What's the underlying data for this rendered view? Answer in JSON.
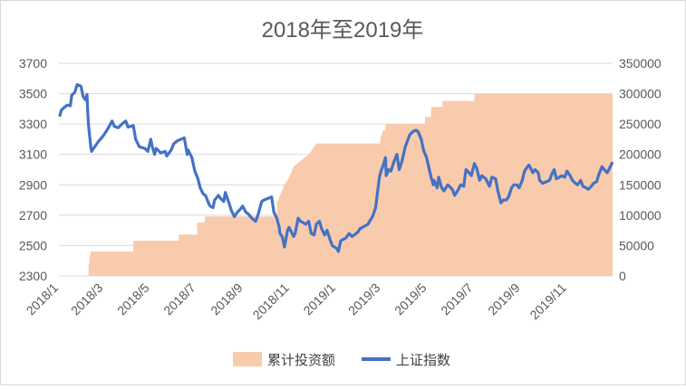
{
  "chart_data": {
    "type": "combo",
    "title": "2018年至2019年",
    "x_tick_labels": [
      "2018/1",
      "2018/3",
      "2018/5",
      "2018/7",
      "2018/9",
      "2018/11",
      "2019/1",
      "2019/3",
      "2019/5",
      "2019/7",
      "2019/9",
      "2019/11"
    ],
    "x_tick_dates": [
      "2018-01-01",
      "2018-03-01",
      "2018-05-01",
      "2018-07-01",
      "2018-09-01",
      "2018-11-01",
      "2019-01-01",
      "2019-03-01",
      "2019-05-01",
      "2019-07-01",
      "2019-09-01",
      "2019-11-01"
    ],
    "xlim": [
      "2018-01-01",
      "2019-12-31"
    ],
    "y_left": {
      "ylim": [
        2300,
        3700
      ],
      "ticks": [
        "2300",
        "2500",
        "2700",
        "2900",
        "3100",
        "3300",
        "3500",
        "3700"
      ]
    },
    "y_right": {
      "ylim": [
        0,
        350000
      ],
      "ticks": [
        "0",
        "50000",
        "100000",
        "150000",
        "200000",
        "250000",
        "300000",
        "350000"
      ]
    },
    "grid": true,
    "legend_position": "bottom",
    "series": [
      {
        "name": "累计投资额",
        "kind": "area",
        "axis": "right",
        "color": "#f8cbad",
        "points": [
          [
            "2018-02-09",
            0
          ],
          [
            "2018-02-09",
            15000
          ],
          [
            "2018-02-12",
            40000
          ],
          [
            "2018-04-09",
            40000
          ],
          [
            "2018-04-09",
            58000
          ],
          [
            "2018-06-08",
            58000
          ],
          [
            "2018-06-08",
            68000
          ],
          [
            "2018-07-02",
            68000
          ],
          [
            "2018-07-02",
            88000
          ],
          [
            "2018-07-12",
            88000
          ],
          [
            "2018-07-12",
            98000
          ],
          [
            "2018-10-15",
            98000
          ],
          [
            "2018-10-15",
            120000
          ],
          [
            "2018-10-25",
            150000
          ],
          [
            "2018-10-31",
            162000
          ],
          [
            "2018-11-06",
            180000
          ],
          [
            "2018-11-26",
            200000
          ],
          [
            "2018-12-06",
            218000
          ],
          [
            "2019-02-28",
            218000
          ],
          [
            "2019-02-28",
            226000
          ],
          [
            "2019-03-04",
            240000
          ],
          [
            "2019-03-07",
            240000
          ],
          [
            "2019-03-07",
            250000
          ],
          [
            "2019-04-28",
            250000
          ],
          [
            "2019-04-28",
            262000
          ],
          [
            "2019-05-06",
            262000
          ],
          [
            "2019-05-06",
            278000
          ],
          [
            "2019-05-21",
            278000
          ],
          [
            "2019-05-21",
            288000
          ],
          [
            "2019-07-02",
            288000
          ],
          [
            "2019-07-02",
            300000
          ],
          [
            "2019-12-31",
            300000
          ]
        ]
      },
      {
        "name": "上证指数",
        "kind": "line",
        "axis": "left",
        "color": "#4472c4",
        "points": [
          [
            "2018-01-02",
            3350
          ],
          [
            "2018-01-04",
            3390
          ],
          [
            "2018-01-08",
            3410
          ],
          [
            "2018-01-12",
            3425
          ],
          [
            "2018-01-16",
            3420
          ],
          [
            "2018-01-18",
            3490
          ],
          [
            "2018-01-22",
            3510
          ],
          [
            "2018-01-25",
            3560
          ],
          [
            "2018-01-30",
            3550
          ],
          [
            "2018-02-02",
            3480
          ],
          [
            "2018-02-05",
            3460
          ],
          [
            "2018-02-07",
            3495
          ],
          [
            "2018-02-08",
            3380
          ],
          [
            "2018-02-09",
            3290
          ],
          [
            "2018-02-12",
            3150
          ],
          [
            "2018-02-13",
            3120
          ],
          [
            "2018-02-22",
            3185
          ],
          [
            "2018-02-28",
            3220
          ],
          [
            "2018-03-06",
            3265
          ],
          [
            "2018-03-12",
            3320
          ],
          [
            "2018-03-15",
            3285
          ],
          [
            "2018-03-20",
            3275
          ],
          [
            "2018-03-26",
            3305
          ],
          [
            "2018-03-30",
            3320
          ],
          [
            "2018-04-02",
            3280
          ],
          [
            "2018-04-09",
            3290
          ],
          [
            "2018-04-12",
            3200
          ],
          [
            "2018-04-17",
            3150
          ],
          [
            "2018-04-24",
            3140
          ],
          [
            "2018-04-28",
            3120
          ],
          [
            "2018-05-02",
            3200
          ],
          [
            "2018-05-04",
            3150
          ],
          [
            "2018-05-07",
            3100
          ],
          [
            "2018-05-09",
            3140
          ],
          [
            "2018-05-15",
            3110
          ],
          [
            "2018-05-21",
            3120
          ],
          [
            "2018-05-23",
            3090
          ],
          [
            "2018-05-29",
            3130
          ],
          [
            "2018-06-01",
            3170
          ],
          [
            "2018-06-06",
            3190
          ],
          [
            "2018-06-11",
            3200
          ],
          [
            "2018-06-15",
            3210
          ],
          [
            "2018-06-19",
            3100
          ],
          [
            "2018-06-20",
            3130
          ],
          [
            "2018-06-25",
            3080
          ],
          [
            "2018-06-29",
            2990
          ],
          [
            "2018-07-03",
            2940
          ],
          [
            "2018-07-06",
            2880
          ],
          [
            "2018-07-10",
            2840
          ],
          [
            "2018-07-13",
            2830
          ],
          [
            "2018-07-17",
            2780
          ],
          [
            "2018-07-19",
            2760
          ],
          [
            "2018-07-23",
            2750
          ],
          [
            "2018-07-25",
            2800
          ],
          [
            "2018-07-30",
            2830
          ],
          [
            "2018-08-02",
            2810
          ],
          [
            "2018-08-06",
            2790
          ],
          [
            "2018-08-08",
            2850
          ],
          [
            "2018-08-13",
            2780
          ],
          [
            "2018-08-16",
            2730
          ],
          [
            "2018-08-20",
            2690
          ],
          [
            "2018-08-24",
            2720
          ],
          [
            "2018-08-28",
            2740
          ],
          [
            "2018-08-31",
            2760
          ],
          [
            "2018-09-04",
            2720
          ],
          [
            "2018-09-07",
            2710
          ],
          [
            "2018-09-12",
            2680
          ],
          [
            "2018-09-17",
            2660
          ],
          [
            "2018-09-20",
            2700
          ],
          [
            "2018-09-25",
            2790
          ],
          [
            "2018-09-28",
            2800
          ],
          [
            "2018-10-08",
            2820
          ],
          [
            "2018-10-11",
            2720
          ],
          [
            "2018-10-15",
            2680
          ],
          [
            "2018-10-18",
            2620
          ],
          [
            "2018-10-19",
            2580
          ],
          [
            "2018-10-22",
            2560
          ],
          [
            "2018-10-25",
            2490
          ],
          [
            "2018-10-29",
            2600
          ],
          [
            "2018-10-31",
            2620
          ],
          [
            "2018-11-02",
            2600
          ],
          [
            "2018-11-06",
            2560
          ],
          [
            "2018-11-08",
            2580
          ],
          [
            "2018-11-12",
            2680
          ],
          [
            "2018-11-15",
            2660
          ],
          [
            "2018-11-19",
            2650
          ],
          [
            "2018-11-22",
            2640
          ],
          [
            "2018-11-26",
            2660
          ],
          [
            "2018-11-29",
            2580
          ],
          [
            "2018-12-03",
            2570
          ],
          [
            "2018-12-06",
            2640
          ],
          [
            "2018-12-10",
            2660
          ],
          [
            "2018-12-13",
            2610
          ],
          [
            "2018-12-17",
            2570
          ],
          [
            "2018-12-20",
            2600
          ],
          [
            "2018-12-24",
            2540
          ],
          [
            "2018-12-27",
            2500
          ],
          [
            "2019-01-02",
            2480
          ],
          [
            "2019-01-04",
            2460
          ],
          [
            "2019-01-07",
            2530
          ],
          [
            "2019-01-10",
            2540
          ],
          [
            "2019-01-14",
            2550
          ],
          [
            "2019-01-18",
            2580
          ],
          [
            "2019-01-22",
            2560
          ],
          [
            "2019-01-25",
            2570
          ],
          [
            "2019-01-30",
            2590
          ],
          [
            "2019-02-01",
            2610
          ],
          [
            "2019-02-12",
            2640
          ],
          [
            "2019-02-14",
            2660
          ],
          [
            "2019-02-18",
            2690
          ],
          [
            "2019-02-22",
            2750
          ],
          [
            "2019-02-25",
            2870
          ],
          [
            "2019-02-27",
            2950
          ],
          [
            "2019-03-01",
            2990
          ],
          [
            "2019-03-04",
            3030
          ],
          [
            "2019-03-07",
            3080
          ],
          [
            "2019-03-08",
            2960
          ],
          [
            "2019-03-11",
            3000
          ],
          [
            "2019-03-14",
            2990
          ],
          [
            "2019-03-18",
            3050
          ],
          [
            "2019-03-22",
            3100
          ],
          [
            "2019-03-25",
            3000
          ],
          [
            "2019-03-29",
            3060
          ],
          [
            "2019-04-02",
            3150
          ],
          [
            "2019-04-08",
            3230
          ],
          [
            "2019-04-12",
            3250
          ],
          [
            "2019-04-16",
            3260
          ],
          [
            "2019-04-19",
            3250
          ],
          [
            "2019-04-23",
            3200
          ],
          [
            "2019-04-26",
            3130
          ],
          [
            "2019-04-30",
            3080
          ],
          [
            "2019-05-06",
            2950
          ],
          [
            "2019-05-09",
            2900
          ],
          [
            "2019-05-10",
            2930
          ],
          [
            "2019-05-14",
            2880
          ],
          [
            "2019-05-16",
            2950
          ],
          [
            "2019-05-20",
            2880
          ],
          [
            "2019-05-23",
            2860
          ],
          [
            "2019-05-28",
            2900
          ],
          [
            "2019-06-03",
            2870
          ],
          [
            "2019-06-06",
            2830
          ],
          [
            "2019-06-11",
            2870
          ],
          [
            "2019-06-14",
            2900
          ],
          [
            "2019-06-18",
            2890
          ],
          [
            "2019-06-21",
            3000
          ],
          [
            "2019-06-25",
            2980
          ],
          [
            "2019-06-28",
            2960
          ],
          [
            "2019-07-02",
            3040
          ],
          [
            "2019-07-05",
            3010
          ],
          [
            "2019-07-09",
            2930
          ],
          [
            "2019-07-12",
            2960
          ],
          [
            "2019-07-17",
            2940
          ],
          [
            "2019-07-22",
            2890
          ],
          [
            "2019-07-25",
            2950
          ],
          [
            "2019-07-30",
            2940
          ],
          [
            "2019-08-02",
            2860
          ],
          [
            "2019-08-06",
            2780
          ],
          [
            "2019-08-09",
            2800
          ],
          [
            "2019-08-13",
            2800
          ],
          [
            "2019-08-16",
            2820
          ],
          [
            "2019-08-20",
            2880
          ],
          [
            "2019-08-23",
            2900
          ],
          [
            "2019-08-27",
            2900
          ],
          [
            "2019-08-30",
            2880
          ],
          [
            "2019-09-03",
            2930
          ],
          [
            "2019-09-06",
            2990
          ],
          [
            "2019-09-10",
            3020
          ],
          [
            "2019-09-12",
            3030
          ],
          [
            "2019-09-17",
            2980
          ],
          [
            "2019-09-20",
            3000
          ],
          [
            "2019-09-24",
            2980
          ],
          [
            "2019-09-26",
            2930
          ],
          [
            "2019-09-30",
            2910
          ],
          [
            "2019-10-09",
            2930
          ],
          [
            "2019-10-12",
            2970
          ],
          [
            "2019-10-15",
            3000
          ],
          [
            "2019-10-18",
            2940
          ],
          [
            "2019-10-22",
            2950
          ],
          [
            "2019-10-25",
            2960
          ],
          [
            "2019-10-29",
            2950
          ],
          [
            "2019-11-01",
            2990
          ],
          [
            "2019-11-05",
            2960
          ],
          [
            "2019-11-08",
            2930
          ],
          [
            "2019-11-12",
            2910
          ],
          [
            "2019-11-15",
            2900
          ],
          [
            "2019-11-19",
            2930
          ],
          [
            "2019-11-22",
            2890
          ],
          [
            "2019-11-26",
            2880
          ],
          [
            "2019-11-29",
            2870
          ],
          [
            "2019-12-03",
            2890
          ],
          [
            "2019-12-06",
            2910
          ],
          [
            "2019-12-10",
            2920
          ],
          [
            "2019-12-13",
            2970
          ],
          [
            "2019-12-17",
            3020
          ],
          [
            "2019-12-20",
            3000
          ],
          [
            "2019-12-24",
            2980
          ],
          [
            "2019-12-26",
            3000
          ],
          [
            "2019-12-31",
            3050
          ]
        ]
      }
    ]
  }
}
